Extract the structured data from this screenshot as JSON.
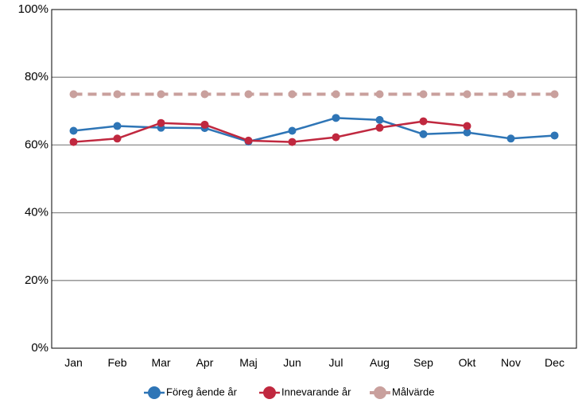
{
  "chart_data": {
    "type": "line",
    "categories": [
      "Jan",
      "Feb",
      "Mar",
      "Apr",
      "Maj",
      "Jun",
      "Jul",
      "Aug",
      "Sep",
      "Okt",
      "Nov",
      "Dec"
    ],
    "ylim": [
      0,
      100
    ],
    "yticks": [
      "0%",
      "20%",
      "40%",
      "60%",
      "80%",
      "100%"
    ],
    "ytick_values": [
      0,
      20,
      40,
      60,
      80,
      100
    ],
    "grid": true,
    "legend_position": "bottom",
    "series": [
      {
        "name": "Föreg ående år",
        "color": "#2e75b6",
        "style": "solid",
        "values": [
          64.2,
          65.6,
          65.1,
          65.0,
          61.0,
          64.2,
          68.0,
          67.4,
          63.2,
          63.7,
          61.9,
          62.8
        ]
      },
      {
        "name": "Innevarande år",
        "color": "#c0283f",
        "style": "solid",
        "values": [
          60.9,
          61.9,
          66.5,
          66.0,
          61.3,
          60.9,
          62.3,
          65.1,
          67.0,
          65.6,
          null,
          null
        ]
      },
      {
        "name": "Målvärde",
        "color": "#c9a09d",
        "style": "dashed",
        "values": [
          75,
          75,
          75,
          75,
          75,
          75,
          75,
          75,
          75,
          75,
          75,
          75
        ]
      }
    ]
  }
}
